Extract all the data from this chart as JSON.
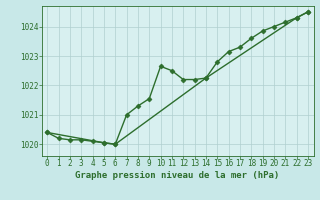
{
  "title": "Graphe pression niveau de la mer (hPa)",
  "bg_color": "#c8e8e8",
  "plot_bg_color": "#d8f0f0",
  "line_color": "#2d6e2d",
  "grid_color": "#b0d0d0",
  "xlim": [
    -0.5,
    23.5
  ],
  "ylim": [
    1019.6,
    1024.7
  ],
  "yticks": [
    1020,
    1021,
    1022,
    1023,
    1024
  ],
  "xticks": [
    0,
    1,
    2,
    3,
    4,
    5,
    6,
    7,
    8,
    9,
    10,
    11,
    12,
    13,
    14,
    15,
    16,
    17,
    18,
    19,
    20,
    21,
    22,
    23
  ],
  "series1_x": [
    0,
    1,
    2,
    3,
    4,
    5,
    6,
    7,
    8,
    9,
    10,
    11,
    12,
    13,
    14,
    15,
    16,
    17,
    18,
    19,
    20,
    21,
    22,
    23
  ],
  "series1_y": [
    1020.4,
    1020.2,
    1020.15,
    1020.15,
    1020.1,
    1020.05,
    1020.0,
    1021.0,
    1021.3,
    1021.55,
    1022.65,
    1022.5,
    1022.2,
    1022.2,
    1022.25,
    1022.8,
    1023.15,
    1023.3,
    1023.6,
    1023.85,
    1024.0,
    1024.15,
    1024.3,
    1024.5
  ],
  "series2_x": [
    0,
    5,
    6,
    14,
    22,
    23
  ],
  "series2_y": [
    1020.4,
    1020.05,
    1020.0,
    1022.25,
    1024.3,
    1024.5
  ],
  "marker": "D",
  "marker_size": 2.5,
  "line_width": 1.0,
  "title_fontsize": 6.5,
  "tick_fontsize": 5.5
}
